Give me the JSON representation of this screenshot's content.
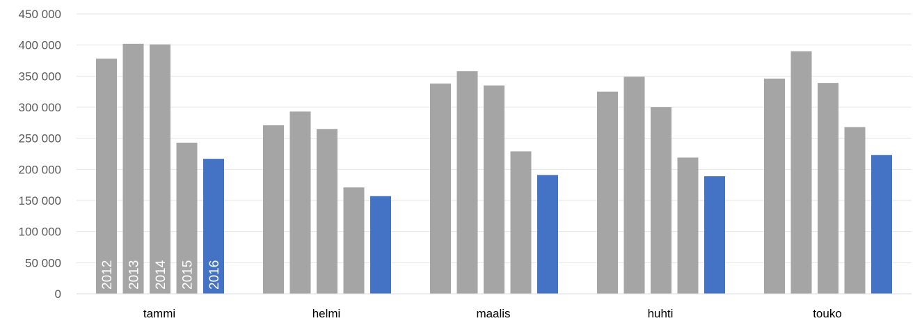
{
  "chart_data": {
    "type": "bar",
    "categories": [
      "tammi",
      "helmi",
      "maalis",
      "huhti",
      "touko"
    ],
    "series": [
      {
        "name": "2012",
        "values": [
          378000,
          271000,
          338000,
          325000,
          346000
        ],
        "color": "#a5a5a5"
      },
      {
        "name": "2013",
        "values": [
          402000,
          293000,
          358000,
          349000,
          390000
        ],
        "color": "#a5a5a5"
      },
      {
        "name": "2014",
        "values": [
          401000,
          265000,
          335000,
          300000,
          339000
        ],
        "color": "#a5a5a5"
      },
      {
        "name": "2015",
        "values": [
          243000,
          171000,
          229000,
          219000,
          268000
        ],
        "color": "#a5a5a5"
      },
      {
        "name": "2016",
        "values": [
          217000,
          157000,
          191000,
          189000,
          223000
        ],
        "color": "#4472c4"
      }
    ],
    "ylim": [
      0,
      450000
    ],
    "yticks": [
      0,
      50000,
      100000,
      150000,
      200000,
      250000,
      300000,
      350000,
      400000,
      450000
    ],
    "ytick_labels": [
      "0",
      "50 000",
      "100 000",
      "150 000",
      "200 000",
      "250 000",
      "300 000",
      "350 000",
      "400 000",
      "450 000"
    ],
    "grid": true,
    "legend": "none; series names shown inside bars of first category",
    "title": "",
    "xlabel": "",
    "ylabel": ""
  }
}
